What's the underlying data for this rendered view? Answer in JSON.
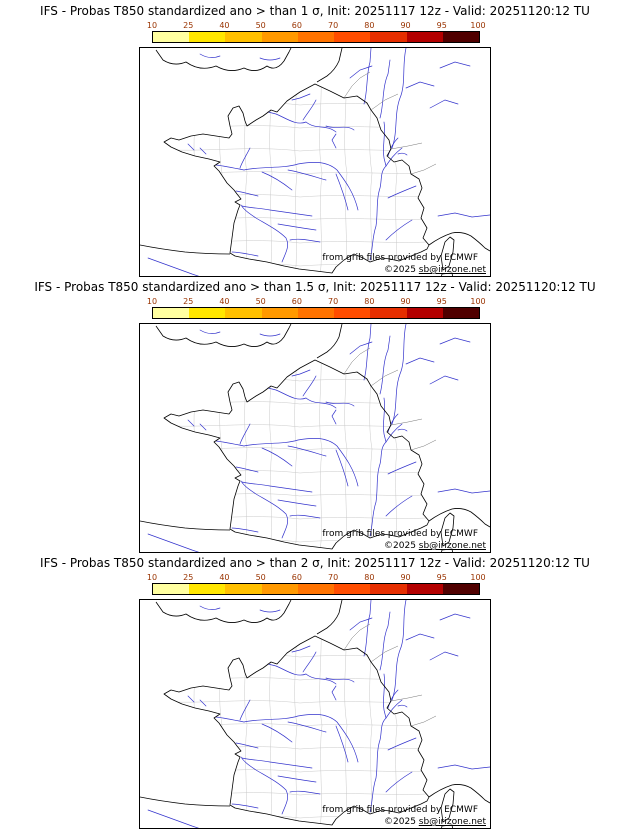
{
  "colorbar": {
    "ticks": [
      "10",
      "25",
      "40",
      "50",
      "60",
      "70",
      "80",
      "90",
      "95",
      "100"
    ],
    "colors": [
      "#ffffa0",
      "#ffe600",
      "#ffc000",
      "#ff9900",
      "#ff7300",
      "#ff4d00",
      "#e62e00",
      "#b30000",
      "#500000"
    ],
    "tick_color": "#993300"
  },
  "panels": [
    {
      "title": "IFS - Probas T850  standardized ano > than 1 σ, Init: 20251117 12z - Valid: 20251120:12 TU"
    },
    {
      "title": "IFS - Probas T850  standardized ano > than 1.5 σ, Init: 20251117 12z - Valid: 20251120:12 TU"
    },
    {
      "title": "IFS - Probas T850  standardized ano > than 2 σ, Init: 20251117 12z - Valid: 20251120:12 TU"
    }
  ],
  "map": {
    "attribution": "from grib files provided by ECMWF",
    "copyright_prefix": "©2025 ",
    "site": "sb@irizone.net",
    "coast_color": "#000000",
    "border_color": "#777777",
    "department_color": "#c4c4c4",
    "river_color": "#3333cc"
  }
}
